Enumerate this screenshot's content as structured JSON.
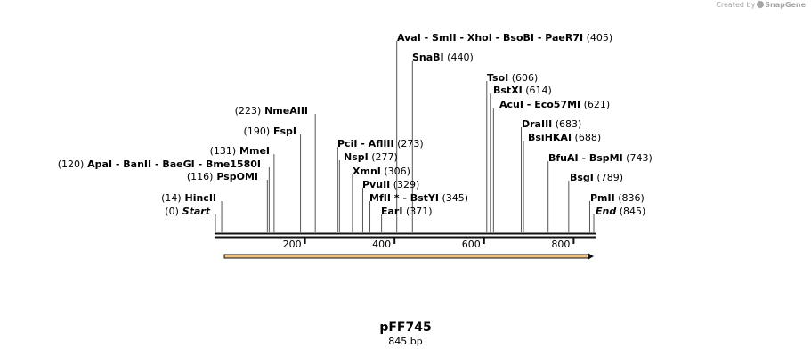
{
  "branding": {
    "prefix": "Created by",
    "name": "SnapGene"
  },
  "plasmid": {
    "name": "pFF745",
    "length_label": "845 bp"
  },
  "sequence": {
    "total_bp": 845,
    "ticks": [
      200,
      400,
      600,
      800
    ],
    "tick_labels": [
      "200",
      "400",
      "600",
      "800"
    ]
  },
  "feature_arrow": {
    "start_bp": 20,
    "end_bp": 845,
    "direction": "forward",
    "color": "#f3c17a"
  },
  "sites": [
    {
      "label_parts": [
        "(0)",
        "Start"
      ],
      "pos": 0,
      "italic": true
    },
    {
      "label_parts": [
        "(14)",
        "HincII"
      ],
      "pos": 14
    },
    {
      "label_parts": [
        "(116)",
        "PspOMI"
      ],
      "pos": 116
    },
    {
      "label_parts": [
        "(120)",
        "ApaI",
        "- BanII",
        "- BaeGI",
        "- Bme1580I"
      ],
      "pos": 120
    },
    {
      "label_parts": [
        "(131)",
        "MmeI"
      ],
      "pos": 131
    },
    {
      "label_parts": [
        "(190)",
        "FspI"
      ],
      "pos": 190
    },
    {
      "label_parts": [
        "(223)",
        "NmeAIII"
      ],
      "pos": 223
    },
    {
      "label_parts": [
        "PciI",
        "- AflIII",
        "(273)"
      ],
      "pos": 273
    },
    {
      "label_parts": [
        "NspI",
        "(277)"
      ],
      "pos": 277
    },
    {
      "label_parts": [
        "XmnI",
        "(306)"
      ],
      "pos": 306
    },
    {
      "label_parts": [
        "PvuII",
        "(329)"
      ],
      "pos": 329
    },
    {
      "label_parts": [
        "MfII *",
        "- BstYI",
        "(345)"
      ],
      "pos": 345
    },
    {
      "label_parts": [
        "EarI",
        "(371)"
      ],
      "pos": 371
    },
    {
      "label_parts": [
        "AvaI",
        "- SmII",
        "- XhoI",
        "- BsoBI",
        "- PaeR7I",
        "(405)"
      ],
      "pos": 405
    },
    {
      "label_parts": [
        "SnaBI",
        "(440)"
      ],
      "pos": 440
    },
    {
      "label_parts": [
        "TsoI",
        "(606)"
      ],
      "pos": 606
    },
    {
      "label_parts": [
        "BstXI",
        "(614)"
      ],
      "pos": 614
    },
    {
      "label_parts": [
        "AcuI",
        "- Eco57MI",
        "(621)"
      ],
      "pos": 621
    },
    {
      "label_parts": [
        "DraIII",
        "(683)"
      ],
      "pos": 683
    },
    {
      "label_parts": [
        "BsiHKAI",
        "(688)"
      ],
      "pos": 688
    },
    {
      "label_parts": [
        "BfuAI",
        "- BspMI",
        "(743)"
      ],
      "pos": 743
    },
    {
      "label_parts": [
        "BsgI",
        "(789)"
      ],
      "pos": 789
    },
    {
      "label_parts": [
        "PmII",
        "(836)"
      ],
      "pos": 836
    },
    {
      "label_parts": [
        "End",
        "(845)"
      ],
      "pos": 845,
      "italic": true
    }
  ]
}
